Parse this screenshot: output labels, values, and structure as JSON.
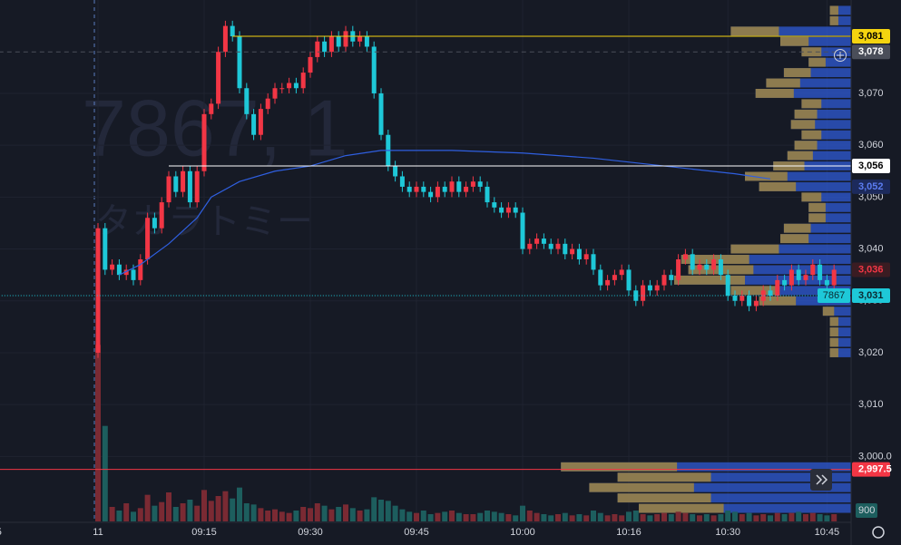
{
  "chart_data": {
    "type": "candlestick",
    "watermark_symbol": "7867, 1",
    "watermark_name": "タカラトミー",
    "up_color": "#f23645",
    "down_color": "#1ec8d8",
    "up_volume_color": "#7a2a33",
    "down_volume_color": "#1d5e5e",
    "grid": true,
    "ylim": [
      2988,
      3088
    ],
    "yticks": [
      {
        "value": 3000,
        "label": "3,000.0"
      },
      {
        "value": 3010,
        "label": "3,010"
      },
      {
        "value": 3020,
        "label": "3,020"
      },
      {
        "value": 3030,
        "label": "3,030"
      },
      {
        "value": 3040,
        "label": "3,040"
      },
      {
        "value": 3050,
        "label": "3,050"
      },
      {
        "value": 3060,
        "label": "3,060"
      },
      {
        "value": 3070,
        "label": "3,070"
      }
    ],
    "xticks": [
      {
        "value": -14,
        "label": "5"
      },
      {
        "value": 0,
        "label": "11"
      },
      {
        "value": 15,
        "label": "09:15"
      },
      {
        "value": 30,
        "label": "09:30"
      },
      {
        "value": 45,
        "label": "09:45"
      },
      {
        "value": 60,
        "label": "10:00"
      },
      {
        "value": 75,
        "label": "10:16"
      },
      {
        "value": 89,
        "label": "10:30"
      },
      {
        "value": 103,
        "label": "10:45"
      }
    ],
    "open": [
      3020,
      3044,
      3036,
      3037,
      3035,
      3036,
      3034,
      3038,
      3046,
      3044,
      3049,
      3054,
      3051,
      3055,
      3049,
      3055,
      3066,
      3068,
      3078,
      3083,
      3081,
      3071,
      3066,
      3062,
      3067,
      3069,
      3071,
      3071,
      3072,
      3071,
      3074,
      3077,
      3080,
      3078,
      3081,
      3079,
      3082,
      3080,
      3081,
      3079,
      3070,
      3062,
      3056,
      3054,
      3052,
      3051,
      3052,
      3051,
      3050,
      3052,
      3051,
      3053,
      3051,
      3052,
      3053,
      3052,
      3049,
      3048,
      3047,
      3048,
      3047,
      3040,
      3041,
      3042,
      3041,
      3040,
      3041,
      3039,
      3040,
      3038,
      3039,
      3036,
      3033,
      3034,
      3035,
      3036,
      3032,
      3030,
      3033,
      3032,
      3033,
      3035,
      3034,
      3038,
      3039,
      3036,
      3037,
      3036,
      3038,
      3035,
      3031,
      3030,
      3031,
      3029,
      3030,
      3032,
      3031,
      3034,
      3033,
      3036,
      3034,
      3035,
      3037,
      3034,
      3033
    ],
    "high": [
      3045,
      3045,
      3038,
      3038,
      3037,
      3037,
      3039,
      3047,
      3047,
      3050,
      3055,
      3055,
      3056,
      3056,
      3056,
      3067,
      3069,
      3079,
      3084,
      3084,
      3082,
      3072,
      3067,
      3068,
      3070,
      3072,
      3072,
      3073,
      3073,
      3075,
      3078,
      3081,
      3081,
      3082,
      3082,
      3083,
      3083,
      3082,
      3082,
      3080,
      3071,
      3063,
      3057,
      3055,
      3053,
      3053,
      3053,
      3052,
      3053,
      3053,
      3054,
      3054,
      3053,
      3054,
      3054,
      3053,
      3050,
      3049,
      3049,
      3049,
      3048,
      3042,
      3043,
      3043,
      3042,
      3042,
      3042,
      3041,
      3041,
      3040,
      3040,
      3037,
      3035,
      3036,
      3037,
      3037,
      3033,
      3034,
      3034,
      3034,
      3036,
      3036,
      3039,
      3040,
      3040,
      3038,
      3038,
      3039,
      3039,
      3036,
      3032,
      3032,
      3032,
      3031,
      3033,
      3033,
      3035,
      3035,
      3037,
      3037,
      3036,
      3038,
      3038,
      3035,
      3037
    ],
    "low": [
      3019,
      3035,
      3035,
      3034,
      3034,
      3033,
      3033,
      3037,
      3043,
      3043,
      3048,
      3050,
      3050,
      3048,
      3048,
      3054,
      3065,
      3067,
      3077,
      3080,
      3070,
      3065,
      3061,
      3061,
      3066,
      3068,
      3070,
      3070,
      3070,
      3070,
      3073,
      3076,
      3077,
      3077,
      3078,
      3078,
      3079,
      3079,
      3078,
      3069,
      3061,
      3055,
      3053,
      3051,
      3050,
      3050,
      3050,
      3049,
      3049,
      3050,
      3050,
      3050,
      3050,
      3051,
      3051,
      3048,
      3047,
      3046,
      3046,
      3046,
      3039,
      3039,
      3040,
      3040,
      3039,
      3039,
      3038,
      3038,
      3037,
      3037,
      3035,
      3032,
      3032,
      3033,
      3034,
      3031,
      3029,
      3029,
      3031,
      3031,
      3032,
      3033,
      3033,
      3037,
      3035,
      3035,
      3035,
      3035,
      3034,
      3030,
      3029,
      3029,
      3028,
      3028,
      3029,
      3030,
      3030,
      3032,
      3032,
      3033,
      3033,
      3034,
      3033,
      3032,
      3032
    ],
    "close": [
      3044,
      3036,
      3037,
      3035,
      3036,
      3034,
      3038,
      3046,
      3044,
      3049,
      3054,
      3051,
      3055,
      3049,
      3055,
      3066,
      3068,
      3078,
      3083,
      3081,
      3071,
      3066,
      3062,
      3067,
      3069,
      3071,
      3071,
      3072,
      3071,
      3074,
      3077,
      3080,
      3078,
      3081,
      3079,
      3082,
      3080,
      3081,
      3079,
      3070,
      3062,
      3056,
      3054,
      3052,
      3051,
      3052,
      3051,
      3050,
      3052,
      3051,
      3053,
      3051,
      3052,
      3053,
      3052,
      3049,
      3048,
      3047,
      3048,
      3047,
      3040,
      3041,
      3042,
      3041,
      3040,
      3041,
      3039,
      3040,
      3038,
      3039,
      3036,
      3033,
      3034,
      3035,
      3036,
      3032,
      3030,
      3033,
      3032,
      3033,
      3035,
      3034,
      3038,
      3039,
      3036,
      3037,
      3036,
      3038,
      3035,
      3031,
      3030,
      3031,
      3029,
      3030,
      3032,
      3031,
      3034,
      3033,
      3036,
      3034,
      3035,
      3037,
      3034,
      3033,
      3036
    ],
    "volume": [
      14600,
      7900,
      1200,
      900,
      1500,
      800,
      1100,
      2200,
      1300,
      1600,
      2400,
      1200,
      1500,
      1800,
      1300,
      2600,
      1700,
      2100,
      2500,
      1900,
      2800,
      1500,
      1400,
      1100,
      900,
      1000,
      800,
      700,
      900,
      1200,
      1100,
      1500,
      1300,
      1000,
      1200,
      1400,
      1100,
      900,
      1000,
      2000,
      1800,
      1700,
      1300,
      1000,
      800,
      700,
      900,
      600,
      700,
      800,
      900,
      700,
      600,
      600,
      700,
      900,
      800,
      700,
      600,
      500,
      1300,
      900,
      700,
      600,
      500,
      600,
      700,
      500,
      600,
      500,
      900,
      700,
      500,
      600,
      500,
      800,
      900,
      600,
      500,
      600,
      700,
      600,
      800,
      700,
      600,
      500,
      600,
      500,
      600,
      900,
      800,
      600,
      700,
      500,
      600,
      500,
      700,
      600,
      700,
      800,
      600,
      700,
      600,
      500,
      600
    ],
    "volume_label": {
      "value": 900,
      "label": "900"
    },
    "vwap": {
      "color": "#2f5fe0",
      "x": [
        3,
        6,
        10,
        14,
        16,
        20,
        25,
        30,
        35,
        40,
        50,
        60,
        70,
        80,
        90,
        95
      ],
      "values": [
        3035,
        3037,
        3041,
        3046,
        3050,
        3053,
        3055,
        3056,
        3058,
        3059,
        3059,
        3058.5,
        3057.5,
        3056,
        3054.5,
        3053.5
      ]
    },
    "profile": {
      "levels": [
        2990,
        2992,
        2994,
        2996,
        2998,
        3020,
        3022,
        3024,
        3026,
        3028,
        3030,
        3032,
        3034,
        3036,
        3038,
        3040,
        3042,
        3044,
        3046,
        3048,
        3050,
        3052,
        3054,
        3056,
        3058,
        3060,
        3062,
        3064,
        3066,
        3068,
        3070,
        3072,
        3074,
        3076,
        3078,
        3080,
        3082,
        3084,
        3086
      ],
      "volumes": [
        300,
        330,
        370,
        330,
        410,
        30,
        30,
        30,
        30,
        40,
        130,
        170,
        250,
        230,
        240,
        170,
        100,
        95,
        60,
        60,
        70,
        130,
        150,
        110,
        90,
        80,
        70,
        85,
        80,
        70,
        135,
        120,
        95,
        60,
        70,
        100,
        170,
        30,
        30
      ]
    },
    "price_labels": [
      {
        "value": 3081,
        "label": "3,081",
        "color": "#f5d40f",
        "text_color": "#000000",
        "line": "solid",
        "from": 19
      },
      {
        "value": 3078,
        "label": "3,078",
        "color": "#4a4e59",
        "text_color": "#ffffff",
        "line": "dashed",
        "from": -14
      },
      {
        "value": 3056,
        "label": "3,056",
        "color": "#ffffff",
        "text_color": "#000000",
        "line": "solid",
        "from": 10
      },
      {
        "value": 3052,
        "label": "3,052",
        "color": "#1c2a5c",
        "text_color": "#5b7cf0",
        "line": "none",
        "from": -14
      },
      {
        "value": 3036,
        "label": "3,036",
        "color": "#3a1c22",
        "text_color": "#f23645",
        "line": "none",
        "from": -14
      },
      {
        "value": 3031,
        "label": "3,031",
        "color": "#1ec8d8",
        "text_color": "#0b2a30",
        "line": "dotted",
        "from": -14,
        "tag": "7867"
      },
      {
        "value": 2997.5,
        "label": "2,997.5",
        "color": "#f23645",
        "text_color": "#ffffff",
        "line": "solid",
        "from": -14
      }
    ]
  }
}
